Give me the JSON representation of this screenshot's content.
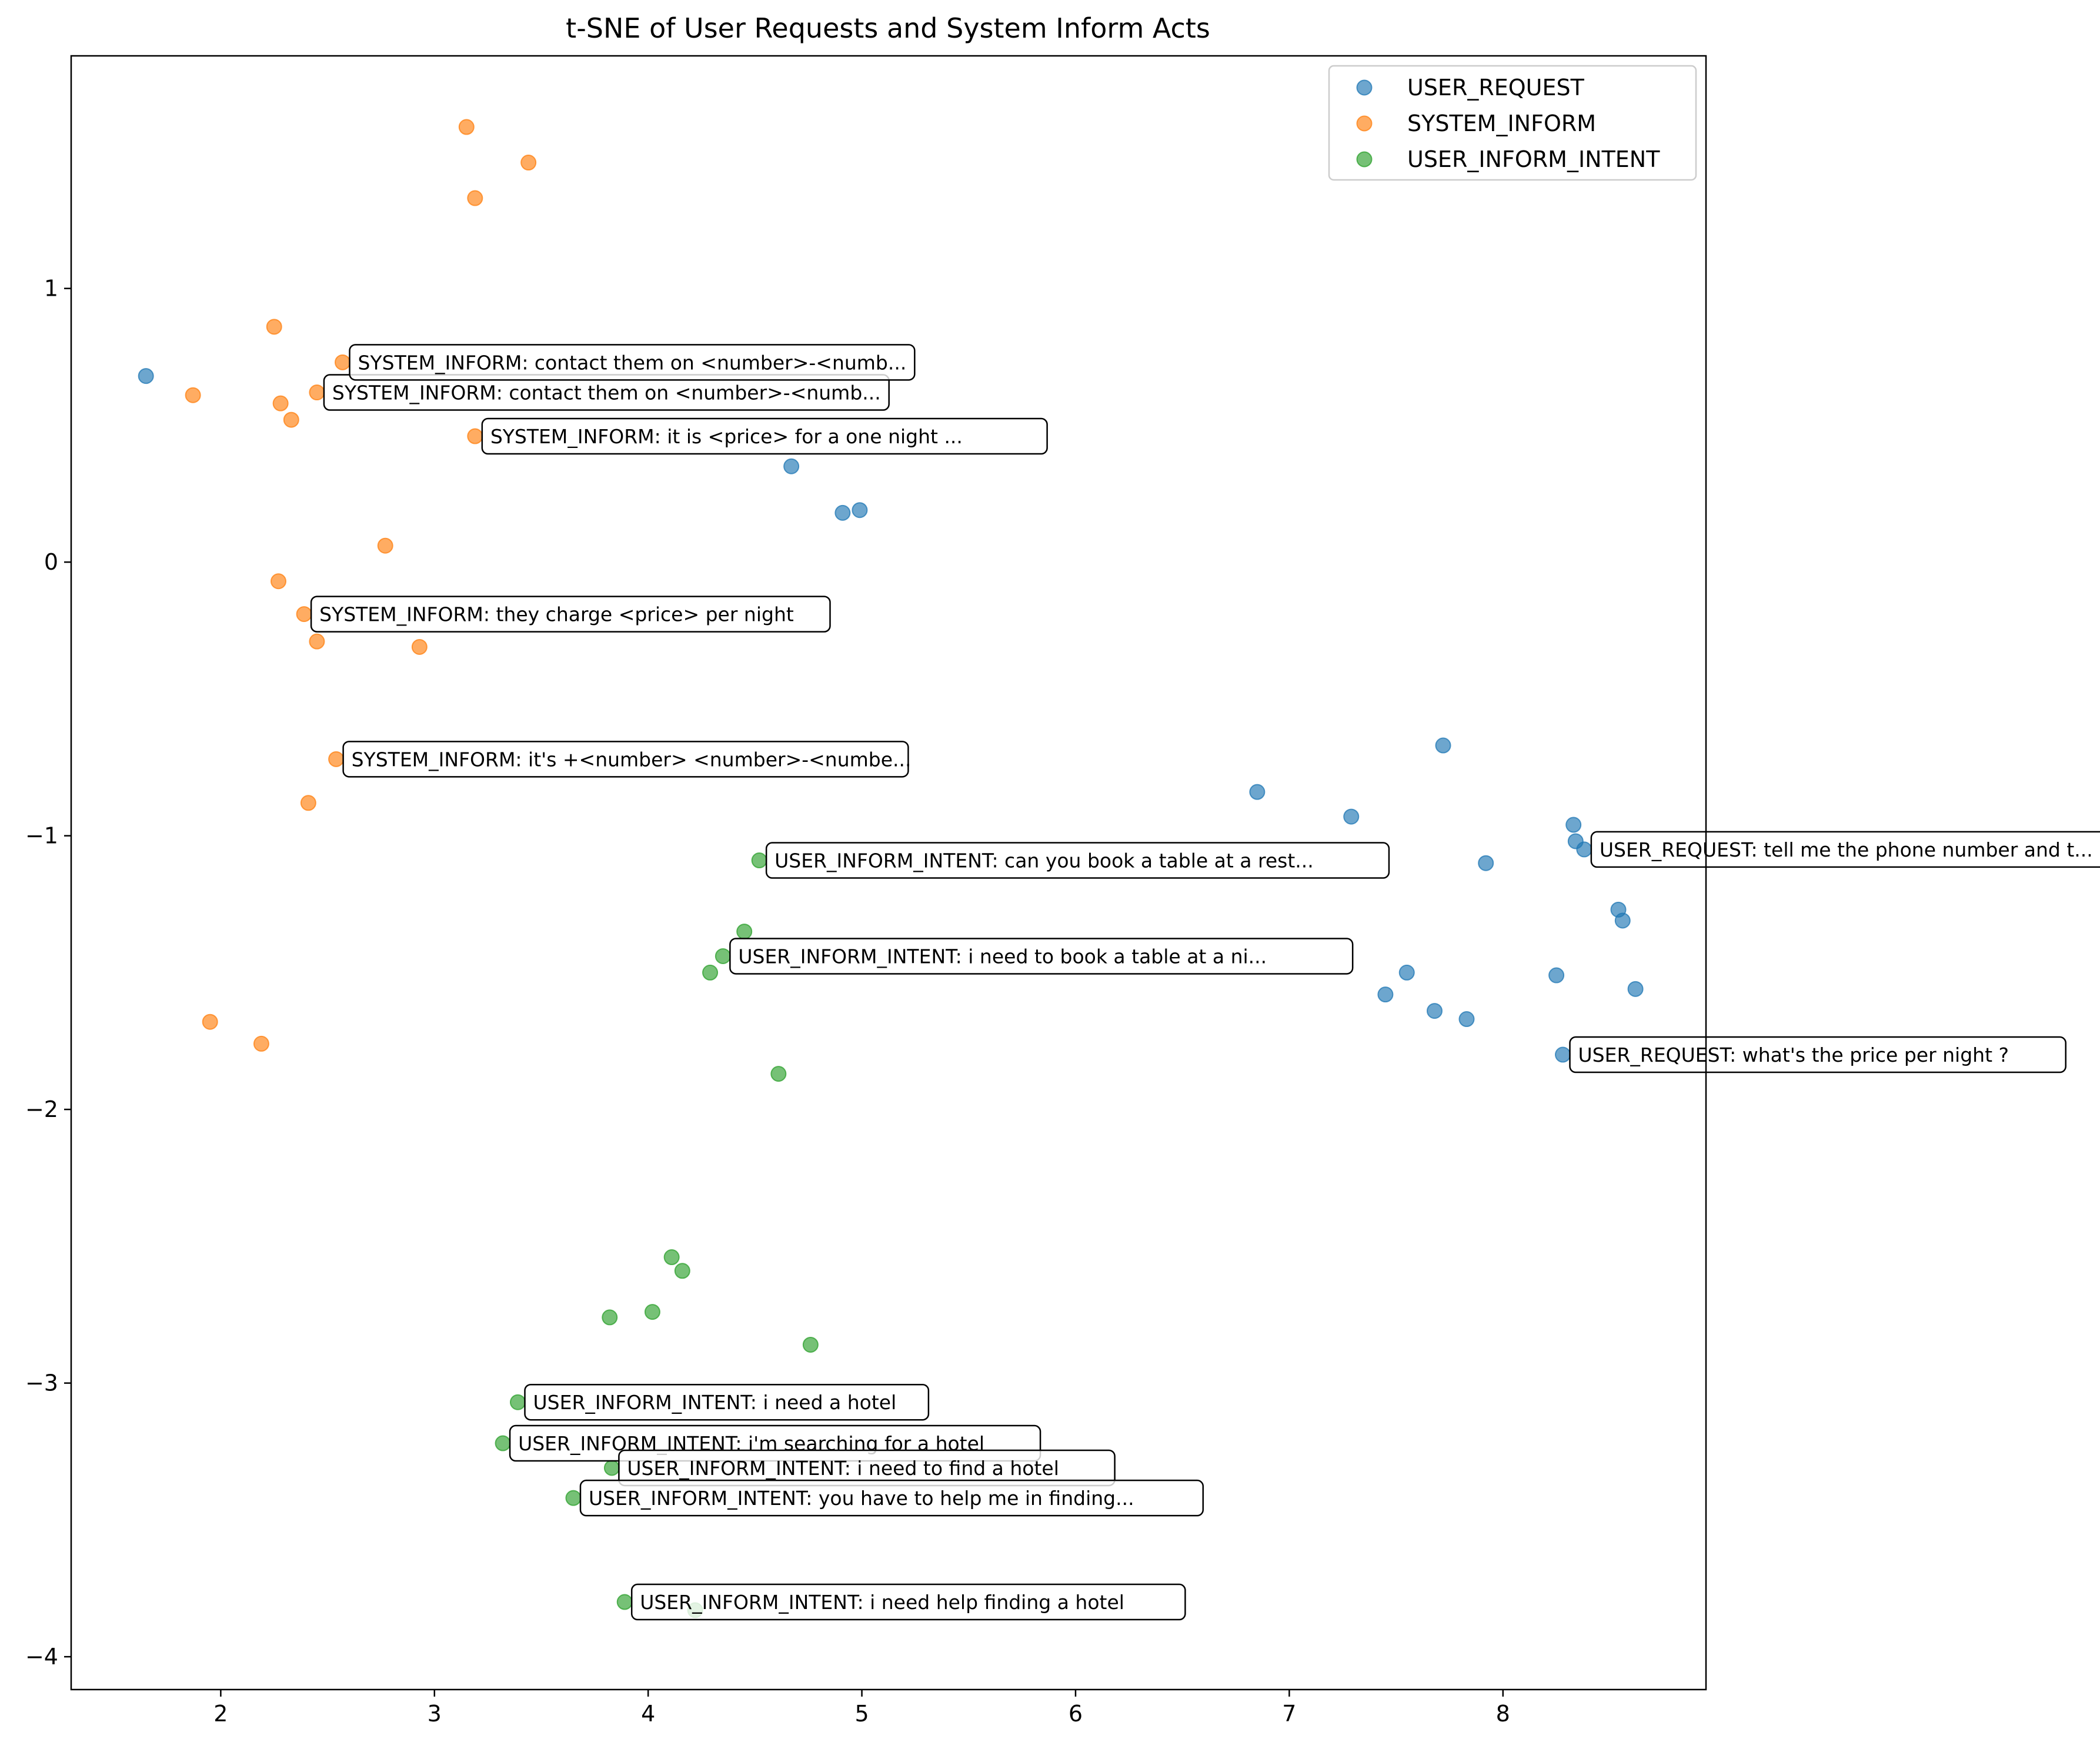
{
  "chart_data": {
    "type": "scatter",
    "title": "t-SNE of User Requests and System Inform Acts",
    "xlabel": "",
    "ylabel": "",
    "xlim": [
      1.3,
      8.95
    ],
    "ylim": [
      -4.12,
      1.85
    ],
    "xticks": [
      2,
      3,
      4,
      5,
      6,
      7,
      8
    ],
    "yticks": [
      1,
      0,
      -1,
      -2,
      -3,
      -4
    ],
    "xtick_labels": [
      "2",
      "3",
      "4",
      "5",
      "6",
      "7",
      "8"
    ],
    "ytick_labels": [
      "1",
      "0",
      "−1",
      "−2",
      "−3",
      "−4"
    ],
    "grid": false,
    "legend_position": "top-right",
    "series": [
      {
        "name": "USER_REQUEST",
        "color": "#1f77b4",
        "points": [
          [
            1.65,
            0.68
          ],
          [
            4.67,
            0.35
          ],
          [
            4.91,
            0.18
          ],
          [
            4.99,
            0.19
          ],
          [
            6.85,
            -0.84
          ],
          [
            7.29,
            -0.93
          ],
          [
            7.72,
            -0.67
          ],
          [
            7.92,
            -1.1
          ],
          [
            8.33,
            -0.96
          ],
          [
            8.34,
            -1.02
          ],
          [
            8.38,
            -1.05
          ],
          [
            8.54,
            -1.27
          ],
          [
            8.56,
            -1.31
          ],
          [
            8.62,
            -1.56
          ],
          [
            8.25,
            -1.51
          ],
          [
            7.55,
            -1.5
          ],
          [
            7.45,
            -1.58
          ],
          [
            7.68,
            -1.64
          ],
          [
            7.83,
            -1.67
          ],
          [
            8.28,
            -1.8
          ]
        ]
      },
      {
        "name": "SYSTEM_INFORM",
        "color": "#ff7f0e",
        "points": [
          [
            3.15,
            1.59
          ],
          [
            3.44,
            1.46
          ],
          [
            3.19,
            1.33
          ],
          [
            2.25,
            0.86
          ],
          [
            2.57,
            0.73
          ],
          [
            1.87,
            0.61
          ],
          [
            2.28,
            0.58
          ],
          [
            2.45,
            0.62
          ],
          [
            2.33,
            0.52
          ],
          [
            3.19,
            0.46
          ],
          [
            2.77,
            0.06
          ],
          [
            2.27,
            -0.07
          ],
          [
            2.39,
            -0.19
          ],
          [
            2.45,
            -0.29
          ],
          [
            2.93,
            -0.31
          ],
          [
            2.54,
            -0.72
          ],
          [
            2.41,
            -0.88
          ],
          [
            1.95,
            -1.68
          ],
          [
            2.19,
            -1.76
          ]
        ]
      },
      {
        "name": "USER_INFORM_INTENT",
        "color": "#2ca02c",
        "points": [
          [
            4.52,
            -1.09
          ],
          [
            4.45,
            -1.35
          ],
          [
            4.35,
            -1.44
          ],
          [
            4.29,
            -1.5
          ],
          [
            4.61,
            -1.87
          ],
          [
            4.11,
            -2.54
          ],
          [
            4.16,
            -2.59
          ],
          [
            3.82,
            -2.76
          ],
          [
            4.02,
            -2.74
          ],
          [
            4.76,
            -2.86
          ],
          [
            3.39,
            -3.07
          ],
          [
            3.32,
            -3.22
          ],
          [
            3.83,
            -3.31
          ],
          [
            3.65,
            -3.42
          ],
          [
            3.89,
            -3.8
          ],
          [
            4.22,
            -3.83
          ]
        ]
      }
    ],
    "annotations": [
      {
        "text": "SYSTEM_INFORM: contact them on <number>-<numb...",
        "series": 1,
        "xy": [
          2.45,
          0.62
        ],
        "hidden": true
      },
      {
        "text": "SYSTEM_INFORM: contact them on <number>-<numb...",
        "series": 1,
        "xy": [
          2.57,
          0.73
        ]
      },
      {
        "text": "SYSTEM_INFORM: it is <price> for a one night ...",
        "series": 1,
        "xy": [
          3.19,
          0.46
        ]
      },
      {
        "text": "SYSTEM_INFORM: they charge <price> per night",
        "series": 1,
        "xy": [
          2.39,
          -0.19
        ]
      },
      {
        "text": "SYSTEM_INFORM: it's +<number> <number>-<numbe...",
        "series": 1,
        "xy": [
          2.54,
          -0.72
        ]
      },
      {
        "text": "USER_INFORM_INTENT: can you book a table at a rest...",
        "series": 2,
        "xy": [
          4.52,
          -1.09
        ]
      },
      {
        "text": "USER_INFORM_INTENT: i need to book a table at a ni...",
        "series": 2,
        "xy": [
          4.35,
          -1.44
        ]
      },
      {
        "text": "USER_REQUEST: tell me the phone number and t...",
        "series": 0,
        "xy": [
          8.38,
          -1.05
        ]
      },
      {
        "text": "USER_REQUEST: what's the price per night ?",
        "series": 0,
        "xy": [
          8.28,
          -1.8
        ]
      },
      {
        "text": "USER_INFORM_INTENT: i need a hotel",
        "series": 2,
        "xy": [
          3.39,
          -3.07
        ]
      },
      {
        "text": "USER_INFORM_INTENT: i'm searching for a hotel",
        "series": 2,
        "xy": [
          3.32,
          -3.22
        ]
      },
      {
        "text": "USER_INFORM_INTENT: i need to find a hotel",
        "series": 2,
        "xy": [
          3.83,
          -3.31
        ]
      },
      {
        "text": "USER_INFORM_INTENT: you have to help me in finding...",
        "series": 2,
        "xy": [
          3.65,
          -3.42
        ]
      },
      {
        "text": "USER_INFORM_INTENT: i need help finding a hotel",
        "series": 2,
        "xy": [
          3.89,
          -3.8
        ]
      }
    ]
  }
}
